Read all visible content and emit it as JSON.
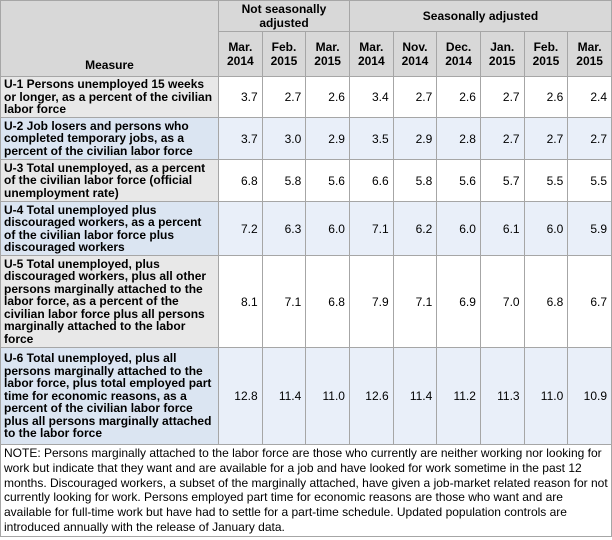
{
  "colors": {
    "header_bg": "#d8d8d8",
    "gray_row_label_bg": "#e8e8e8",
    "gray_row_cell_bg": "#ffffff",
    "blue_row_label_bg": "#dbe5f2",
    "blue_row_cell_bg": "#e9eff9",
    "grid_border": "#a6a6a6",
    "outer_border": "#808080",
    "text": "#000000"
  },
  "table": {
    "measure_header": "Measure",
    "group_headers": [
      {
        "label": "Not seasonally adjusted",
        "colspan": 3
      },
      {
        "label": "Seasonally adjusted",
        "colspan": 6
      }
    ],
    "columns": [
      {
        "month": "Mar.",
        "year": "2014"
      },
      {
        "month": "Feb.",
        "year": "2015"
      },
      {
        "month": "Mar.",
        "year": "2015"
      },
      {
        "month": "Mar.",
        "year": "2014"
      },
      {
        "month": "Nov.",
        "year": "2014"
      },
      {
        "month": "Dec.",
        "year": "2014"
      },
      {
        "month": "Jan.",
        "year": "2015"
      },
      {
        "month": "Feb.",
        "year": "2015"
      },
      {
        "month": "Mar.",
        "year": "2015"
      }
    ],
    "rows": [
      {
        "id": "u1",
        "measure": "U-1 Persons unemployed 15 weeks or longer, as a percent of the civilian labor force",
        "values": [
          "3.7",
          "2.7",
          "2.6",
          "3.4",
          "2.7",
          "2.6",
          "2.7",
          "2.6",
          "2.4"
        ]
      },
      {
        "id": "u2",
        "measure": "U-2 Job losers and persons who completed temporary jobs, as a percent of the civilian labor force",
        "values": [
          "3.7",
          "3.0",
          "2.9",
          "3.5",
          "2.9",
          "2.8",
          "2.7",
          "2.7",
          "2.7"
        ]
      },
      {
        "id": "u3",
        "measure": "U-3 Total unemployed, as a percent of the civilian labor force (official unemployment rate)",
        "values": [
          "6.8",
          "5.8",
          "5.6",
          "6.6",
          "5.8",
          "5.6",
          "5.7",
          "5.5",
          "5.5"
        ]
      },
      {
        "id": "u4",
        "measure": "U-4 Total unemployed plus discouraged workers, as a percent of the civilian labor force plus discouraged workers",
        "values": [
          "7.2",
          "6.3",
          "6.0",
          "7.1",
          "6.2",
          "6.0",
          "6.1",
          "6.0",
          "5.9"
        ]
      },
      {
        "id": "u5",
        "measure": "U-5 Total unemployed, plus discouraged workers, plus all other persons marginally attached to the labor force, as a percent of the civilian labor force plus all persons marginally attached to the labor force",
        "values": [
          "8.1",
          "7.1",
          "6.8",
          "7.9",
          "7.1",
          "6.9",
          "7.0",
          "6.8",
          "6.7"
        ]
      },
      {
        "id": "u6",
        "measure": "U-6 Total unemployed, plus all persons marginally attached to the labor force, plus total employed part time for economic reasons, as a percent of the civilian labor force plus all persons marginally attached to the labor force",
        "values": [
          "12.8",
          "11.4",
          "11.0",
          "12.6",
          "11.4",
          "11.2",
          "11.3",
          "11.0",
          "10.9"
        ]
      }
    ],
    "note": "NOTE: Persons marginally attached to the labor force are those who currently are neither working nor looking for work but indicate that they want and are available for a job and have looked for work sometime in the past 12 months. Discouraged workers, a subset of the marginally attached, have given a job-market related reason for not currently looking for work. Persons employed part time for economic reasons are those who want and are available for full-time work but have had to settle for a part-time schedule. Updated population controls are introduced annually with the release of January data."
  }
}
